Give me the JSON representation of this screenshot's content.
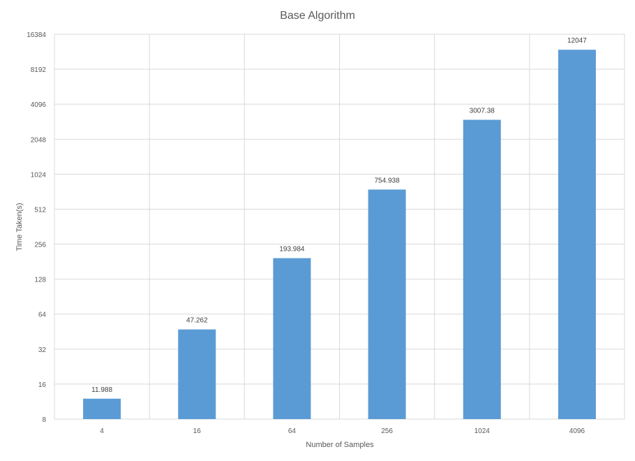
{
  "colors": {
    "bar": "#5b9bd5",
    "gridline": "#d9d9d9",
    "axis_text": "#595959",
    "data_label": "#404040",
    "background": "#ffffff"
  },
  "chart_data": {
    "type": "bar",
    "title": "Base Algorithm",
    "xlabel": "Number  of Samples",
    "ylabel": "Time Taken(s)",
    "y_scale": "log2",
    "ylim": [
      8,
      16384
    ],
    "y_ticks": [
      8,
      16,
      32,
      64,
      128,
      256,
      512,
      1024,
      2048,
      4096,
      8192,
      16384
    ],
    "y_tick_labels": [
      "8",
      "16",
      "32",
      "64",
      "128",
      "256",
      "512",
      "1024",
      "2048",
      "4096",
      "8192",
      "16384"
    ],
    "categories": [
      "4",
      "16",
      "64",
      "256",
      "1024",
      "4096"
    ],
    "values": [
      11.988,
      47.262,
      193.984,
      754.938,
      3007.38,
      12047
    ],
    "data_labels": [
      "11.988",
      "47.262",
      "193.984",
      "754.938",
      "3007.38",
      "12047"
    ],
    "grid": true,
    "legend": "none"
  }
}
